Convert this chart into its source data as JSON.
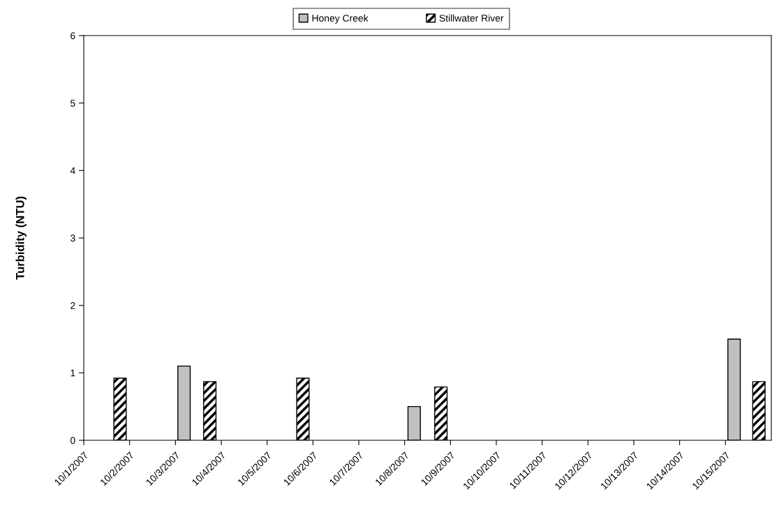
{
  "chart_data": {
    "type": "bar",
    "ylabel": "Turbidity (NTU)",
    "series": [
      {
        "name": "Honey Creek",
        "color": "#c0c0c0",
        "x": [
          "2007-10-03T04:30",
          "2007-10-08T05:00",
          "2007-10-15T04:30"
        ],
        "values": [
          1.1,
          0.5,
          1.5
        ]
      },
      {
        "name": "Stillwater River",
        "color": "#000000",
        "x": [
          "2007-10-01T19:00",
          "2007-10-03T18:00",
          "2007-10-05T18:45",
          "2007-10-08T19:00",
          "2007-10-15T17:30"
        ],
        "values": [
          0.92,
          0.87,
          0.92,
          0.79,
          0.87
        ]
      }
    ],
    "xlim": [
      "2007-10-01",
      "2007-10-16"
    ],
    "xticks": [
      {
        "value": "2007-10-01",
        "label": "10/1/2007"
      },
      {
        "value": "2007-10-02",
        "label": "10/2/2007"
      },
      {
        "value": "2007-10-03",
        "label": "10/3/2007"
      },
      {
        "value": "2007-10-04",
        "label": "10/4/2007"
      },
      {
        "value": "2007-10-05",
        "label": "10/5/2007"
      },
      {
        "value": "2007-10-06",
        "label": "10/6/2007"
      },
      {
        "value": "2007-10-07",
        "label": "10/7/2007"
      },
      {
        "value": "2007-10-08",
        "label": "10/8/2007"
      },
      {
        "value": "2007-10-09",
        "label": "10/9/2007"
      },
      {
        "value": "2007-10-10",
        "label": "10/10/2007"
      },
      {
        "value": "2007-10-11",
        "label": "10/11/2007"
      },
      {
        "value": "2007-10-12",
        "label": "10/12/2007"
      },
      {
        "value": "2007-10-13",
        "label": "10/13/2007"
      },
      {
        "value": "2007-10-14",
        "label": "10/14/2007"
      },
      {
        "value": "2007-10-15",
        "label": "10/15/2007"
      }
    ],
    "ylim": [
      0,
      6
    ],
    "yticks": [
      0,
      1,
      2,
      3,
      4,
      5,
      6
    ],
    "grid": false,
    "legend": "top"
  }
}
